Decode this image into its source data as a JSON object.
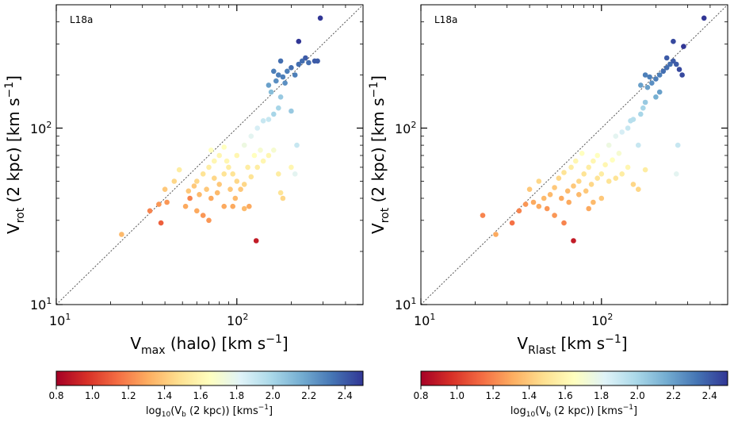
{
  "colorbar": {
    "ticks": [
      0.8,
      1.0,
      1.2,
      1.4,
      1.6,
      1.8,
      2.0,
      2.2,
      2.4
    ],
    "tick_labels": [
      "0.8",
      "1.0",
      "1.2",
      "1.4",
      "1.6",
      "1.8",
      "2.0",
      "2.2",
      "2.4"
    ],
    "range": [
      0.8,
      2.5
    ],
    "label_main": "log",
    "label_sub": "10",
    "label_rest": "(V",
    "label_sub2": "b",
    "label_tail": " (2 kpc)) [kms",
    "label_sup": "−1",
    "label_end": "]",
    "cmap": "RdYlBu_r",
    "stops": [
      "#a50026",
      "#d73027",
      "#f46d43",
      "#fdae61",
      "#fee090",
      "#ffffbf",
      "#e0f3f8",
      "#abd9e9",
      "#74add1",
      "#4575b4",
      "#313695"
    ]
  },
  "chart_data": [
    {
      "type": "scatter",
      "annotation": "L18a",
      "xlabel_main": "V",
      "xlabel_sub": "max",
      "xlabel_tail": " (halo) [km s",
      "xlabel_sup": "−1",
      "xlabel_end": "]",
      "ylabel_main": "V",
      "ylabel_sub": "rot",
      "ylabel_tail": " (2 kpc) [km s",
      "ylabel_sup": "−1",
      "ylabel_end": "]",
      "xscale": "log",
      "yscale": "log",
      "xlim": [
        10,
        500
      ],
      "ylim": [
        10,
        500
      ],
      "tick_labels": {
        "t10": "10",
        "e10": "1",
        "t100": "10",
        "e100": "2"
      },
      "one_to_one_line": true,
      "points": [
        [
          23,
          25,
          1.35
        ],
        [
          38,
          29,
          1.1
        ],
        [
          33,
          34,
          1.2
        ],
        [
          37,
          37,
          1.25
        ],
        [
          41,
          38,
          1.25
        ],
        [
          40,
          45,
          1.4
        ],
        [
          45,
          50,
          1.45
        ],
        [
          48,
          58,
          1.55
        ],
        [
          55,
          40,
          1.2
        ],
        [
          52,
          36,
          1.3
        ],
        [
          60,
          34,
          1.3
        ],
        [
          65,
          32,
          1.25
        ],
        [
          70,
          30,
          1.25
        ],
        [
          72,
          40,
          1.3
        ],
        [
          78,
          43,
          1.35
        ],
        [
          85,
          36,
          1.3
        ],
        [
          95,
          36,
          1.3
        ],
        [
          110,
          35,
          1.35
        ],
        [
          117,
          36,
          1.3
        ],
        [
          128,
          23,
          0.9
        ],
        [
          60,
          50,
          1.45
        ],
        [
          65,
          55,
          1.5
        ],
        [
          70,
          60,
          1.55
        ],
        [
          75,
          65,
          1.6
        ],
        [
          80,
          70,
          1.6
        ],
        [
          72,
          75,
          1.65
        ],
        [
          90,
          60,
          1.55
        ],
        [
          95,
          55,
          1.5
        ],
        [
          100,
          50,
          1.45
        ],
        [
          105,
          45,
          1.4
        ],
        [
          110,
          48,
          1.45
        ],
        [
          120,
          53,
          1.5
        ],
        [
          130,
          60,
          1.55
        ],
        [
          140,
          65,
          1.6
        ],
        [
          150,
          70,
          1.6
        ],
        [
          160,
          75,
          1.7
        ],
        [
          175,
          43,
          1.5
        ],
        [
          180,
          40,
          1.45
        ],
        [
          170,
          55,
          1.55
        ],
        [
          200,
          60,
          1.6
        ],
        [
          210,
          55,
          1.8
        ],
        [
          215,
          80,
          1.9
        ],
        [
          110,
          80,
          1.75
        ],
        [
          120,
          90,
          1.8
        ],
        [
          130,
          100,
          1.85
        ],
        [
          140,
          110,
          1.9
        ],
        [
          150,
          112,
          1.9
        ],
        [
          160,
          120,
          2.0
        ],
        [
          170,
          130,
          2.0
        ],
        [
          200,
          125,
          2.05
        ],
        [
          155,
          160,
          2.1
        ],
        [
          175,
          150,
          2.05
        ],
        [
          150,
          175,
          2.2
        ],
        [
          165,
          185,
          2.25
        ],
        [
          180,
          195,
          2.3
        ],
        [
          190,
          210,
          2.3
        ],
        [
          200,
          220,
          2.35
        ],
        [
          220,
          230,
          2.35
        ],
        [
          230,
          240,
          2.35
        ],
        [
          240,
          250,
          2.4
        ],
        [
          250,
          235,
          2.35
        ],
        [
          270,
          240,
          2.4
        ],
        [
          280,
          240,
          2.4
        ],
        [
          210,
          200,
          2.3
        ],
        [
          185,
          180,
          2.25
        ],
        [
          170,
          200,
          2.3
        ],
        [
          160,
          210,
          2.3
        ],
        [
          220,
          310,
          2.5
        ],
        [
          290,
          420,
          2.5
        ],
        [
          175,
          240,
          2.35
        ],
        [
          85,
          55,
          1.5
        ],
        [
          88,
          65,
          1.6
        ],
        [
          92,
          45,
          1.4
        ],
        [
          98,
          40,
          1.35
        ],
        [
          80,
          48,
          1.4
        ],
        [
          75,
          52,
          1.45
        ],
        [
          68,
          45,
          1.4
        ],
        [
          62,
          42,
          1.35
        ],
        [
          58,
          47,
          1.4
        ],
        [
          54,
          44,
          1.4
        ],
        [
          115,
          60,
          1.55
        ],
        [
          125,
          70,
          1.65
        ],
        [
          135,
          75,
          1.7
        ],
        [
          100,
          70,
          1.6
        ],
        [
          85,
          78,
          1.65
        ]
      ]
    },
    {
      "type": "scatter",
      "annotation": "L18a",
      "xlabel_main": "V",
      "xlabel_sub": "Rlast",
      "xlabel_tail": " [km s",
      "xlabel_sup": "−1",
      "xlabel_end": "]",
      "ylabel_main": "V",
      "ylabel_sub": "rot",
      "ylabel_tail": " (2 kpc) [km s",
      "ylabel_sup": "−1",
      "ylabel_end": "]",
      "xscale": "log",
      "yscale": "log",
      "xlim": [
        10,
        500
      ],
      "ylim": [
        10,
        500
      ],
      "tick_labels": {
        "t10": "10",
        "e10": "1",
        "t100": "10",
        "e100": "2"
      },
      "one_to_one_line": true,
      "points": [
        [
          22,
          32,
          1.2
        ],
        [
          26,
          25,
          1.3
        ],
        [
          32,
          29,
          1.15
        ],
        [
          35,
          34,
          1.2
        ],
        [
          38,
          37,
          1.25
        ],
        [
          42,
          38,
          1.3
        ],
        [
          40,
          45,
          1.4
        ],
        [
          45,
          50,
          1.45
        ],
        [
          50,
          35,
          1.25
        ],
        [
          55,
          32,
          1.25
        ],
        [
          62,
          29,
          1.2
        ],
        [
          70,
          23,
          0.9
        ],
        [
          60,
          40,
          1.3
        ],
        [
          65,
          44,
          1.35
        ],
        [
          70,
          47,
          1.4
        ],
        [
          75,
          50,
          1.45
        ],
        [
          80,
          55,
          1.5
        ],
        [
          85,
          60,
          1.55
        ],
        [
          90,
          65,
          1.6
        ],
        [
          95,
          70,
          1.65
        ],
        [
          78,
          72,
          1.65
        ],
        [
          72,
          65,
          1.6
        ],
        [
          100,
          55,
          1.55
        ],
        [
          110,
          50,
          1.5
        ],
        [
          120,
          52,
          1.5
        ],
        [
          130,
          55,
          1.55
        ],
        [
          140,
          60,
          1.6
        ],
        [
          150,
          48,
          1.45
        ],
        [
          160,
          45,
          1.45
        ],
        [
          175,
          58,
          1.55
        ],
        [
          100,
          40,
          1.4
        ],
        [
          90,
          38,
          1.35
        ],
        [
          85,
          35,
          1.3
        ],
        [
          110,
          80,
          1.75
        ],
        [
          120,
          90,
          1.8
        ],
        [
          130,
          95,
          1.85
        ],
        [
          140,
          100,
          1.9
        ],
        [
          145,
          110,
          1.95
        ],
        [
          150,
          112,
          1.95
        ],
        [
          160,
          80,
          1.9
        ],
        [
          165,
          120,
          2.0
        ],
        [
          170,
          130,
          2.0
        ],
        [
          175,
          140,
          2.05
        ],
        [
          260,
          55,
          1.8
        ],
        [
          265,
          80,
          1.9
        ],
        [
          180,
          170,
          2.2
        ],
        [
          190,
          180,
          2.25
        ],
        [
          200,
          190,
          2.3
        ],
        [
          210,
          200,
          2.3
        ],
        [
          220,
          210,
          2.35
        ],
        [
          230,
          220,
          2.35
        ],
        [
          240,
          230,
          2.35
        ],
        [
          250,
          240,
          2.4
        ],
        [
          260,
          230,
          2.4
        ],
        [
          270,
          215,
          2.45
        ],
        [
          280,
          200,
          2.45
        ],
        [
          210,
          160,
          2.2
        ],
        [
          200,
          150,
          2.15
        ],
        [
          185,
          195,
          2.3
        ],
        [
          175,
          200,
          2.3
        ],
        [
          250,
          310,
          2.45
        ],
        [
          285,
          290,
          2.5
        ],
        [
          370,
          420,
          2.5
        ],
        [
          230,
          250,
          2.4
        ],
        [
          165,
          175,
          2.2
        ],
        [
          58,
          52,
          1.45
        ],
        [
          62,
          56,
          1.5
        ],
        [
          68,
          60,
          1.55
        ],
        [
          75,
          42,
          1.35
        ],
        [
          82,
          44,
          1.4
        ],
        [
          88,
          48,
          1.45
        ],
        [
          95,
          52,
          1.5
        ],
        [
          105,
          62,
          1.6
        ],
        [
          115,
          66,
          1.65
        ],
        [
          125,
          72,
          1.7
        ],
        [
          55,
          46,
          1.4
        ],
        [
          52,
          42,
          1.35
        ],
        [
          48,
          40,
          1.35
        ],
        [
          45,
          36,
          1.3
        ],
        [
          66,
          38,
          1.3
        ]
      ]
    }
  ]
}
